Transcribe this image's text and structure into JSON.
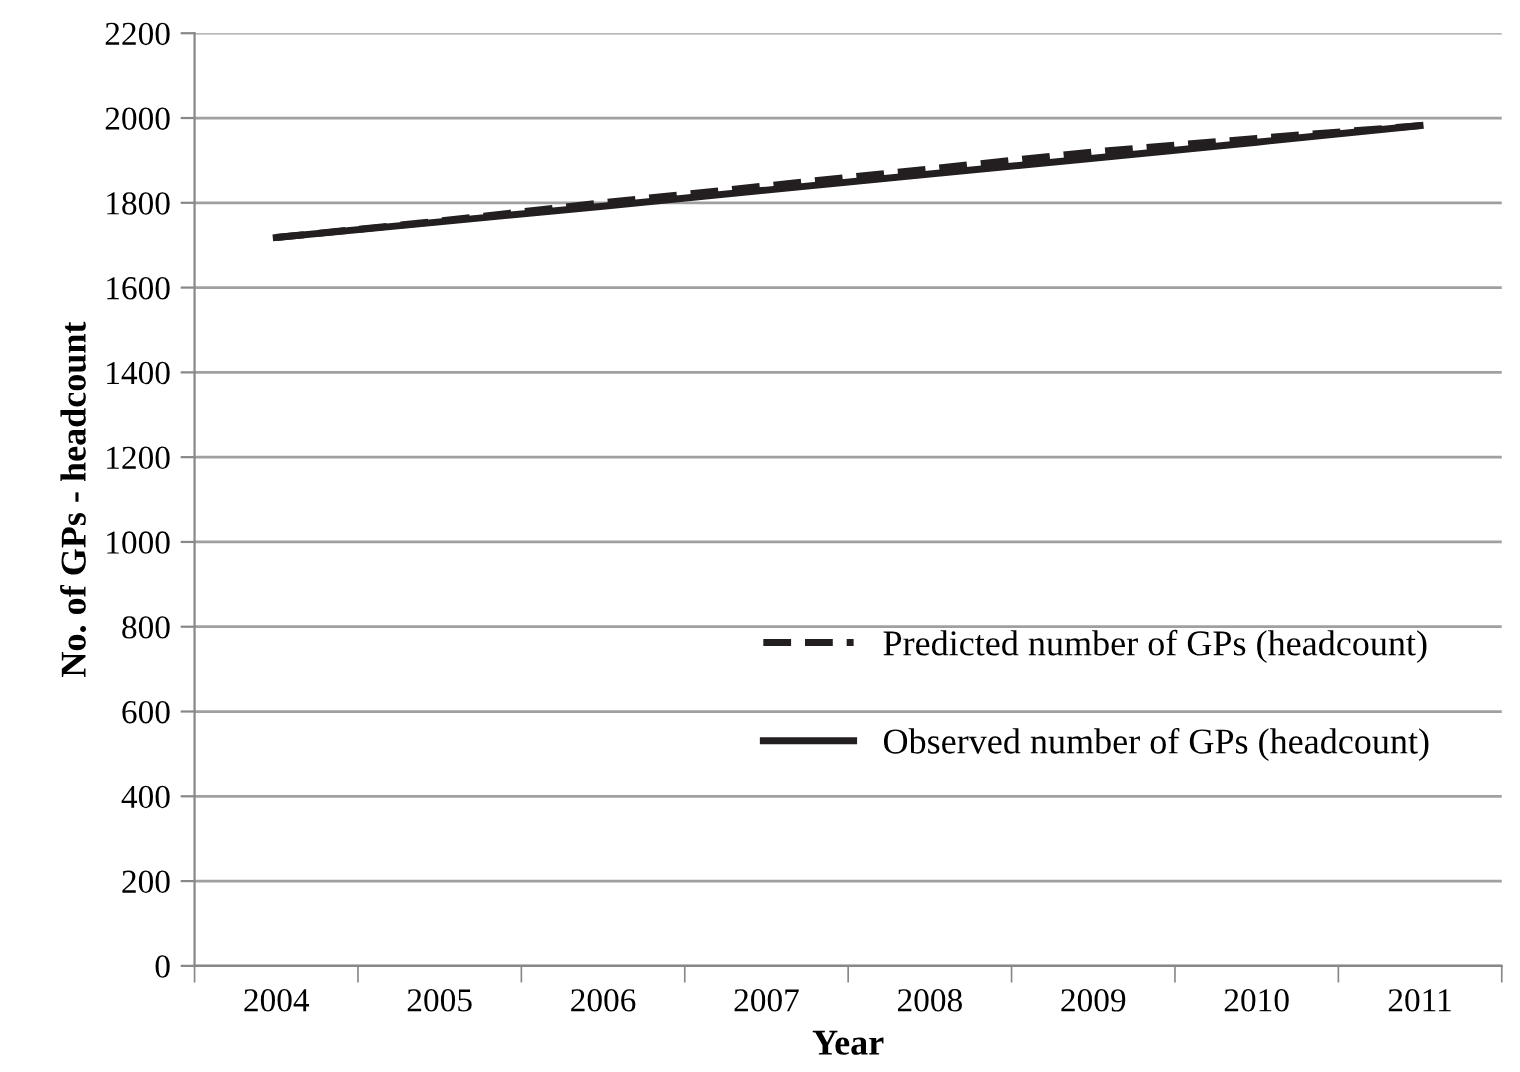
{
  "chart_data": {
    "type": "line",
    "xlabel": "Year",
    "ylabel": "No. of GPs - headcount",
    "categories": [
      "2004",
      "2005",
      "2006",
      "2007",
      "2008",
      "2009",
      "2010",
      "2011"
    ],
    "series": [
      {
        "name": "Predicted number of GPs (headcount)",
        "color": "#231f20",
        "line_style": "dashed",
        "values": [
          1718,
          1757,
          1800,
          1840,
          1880,
          1920,
          1952,
          1982
        ]
      },
      {
        "name": "Observed number of GPs (headcount)",
        "color": "#231f20",
        "line_style": "solid",
        "values": [
          1718,
          1755,
          1792,
          1830,
          1868,
          1905,
          1943,
          1982
        ]
      }
    ],
    "ylim": [
      0,
      2200
    ],
    "yticks": [
      0,
      200,
      400,
      600,
      800,
      1000,
      1200,
      1400,
      1600,
      1800,
      2000,
      2200
    ],
    "grid": "y",
    "legend": "center right",
    "marker": "none"
  }
}
